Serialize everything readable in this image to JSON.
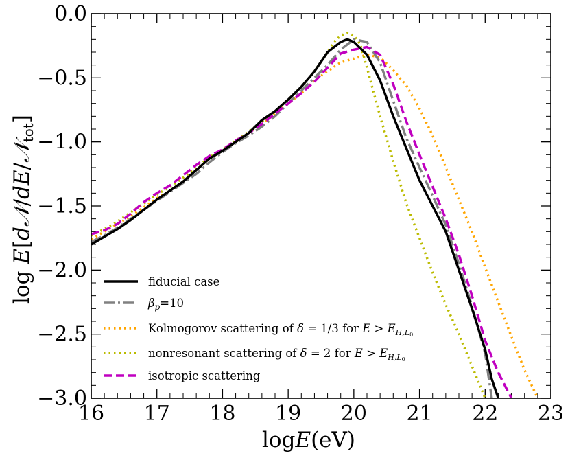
{
  "chart_data": {
    "type": "line",
    "title": "",
    "xlabel": "logE(eV)",
    "ylabel": "log E[dN/dE/N_tot]",
    "xlim": [
      16,
      23
    ],
    "ylim": [
      -3.0,
      0.0
    ],
    "xticks": [
      16,
      17,
      18,
      19,
      20,
      21,
      22,
      23
    ],
    "xtick_labels": [
      "16",
      "17",
      "18",
      "19",
      "20",
      "21",
      "22",
      "23"
    ],
    "yticks": [
      0.0,
      -0.5,
      -1.0,
      -1.5,
      -2.0,
      -2.5,
      -3.0
    ],
    "ytick_labels": [
      "0.0",
      "−0.5",
      "−1.0",
      "−1.5",
      "−2.0",
      "−2.5",
      "−3.0"
    ],
    "grid": false,
    "legend_position": "lower-left",
    "series": [
      {
        "name": "fiducial case",
        "color": "#000000",
        "style": "solid",
        "x": [
          16.0,
          16.2,
          16.4,
          16.6,
          16.8,
          17.0,
          17.2,
          17.4,
          17.6,
          17.8,
          18.0,
          18.2,
          18.4,
          18.6,
          18.8,
          19.0,
          19.2,
          19.4,
          19.6,
          19.8,
          19.9,
          20.0,
          20.2,
          20.4,
          20.6,
          20.8,
          21.0,
          21.2,
          21.4,
          21.6,
          21.8,
          22.0,
          22.1,
          22.2
        ],
        "y": [
          -1.8,
          -1.74,
          -1.68,
          -1.61,
          -1.53,
          -1.45,
          -1.38,
          -1.31,
          -1.22,
          -1.13,
          -1.07,
          -1.0,
          -0.93,
          -0.83,
          -0.76,
          -0.67,
          -0.57,
          -0.45,
          -0.3,
          -0.22,
          -0.2,
          -0.22,
          -0.32,
          -0.52,
          -0.8,
          -1.05,
          -1.3,
          -1.5,
          -1.7,
          -2.0,
          -2.3,
          -2.62,
          -2.85,
          -3.0
        ]
      },
      {
        "name": "β_p=10",
        "color": "#808080",
        "style": "dashdot",
        "x": [
          16.0,
          16.2,
          16.4,
          16.6,
          16.8,
          17.0,
          17.2,
          17.4,
          17.6,
          17.8,
          18.0,
          18.2,
          18.4,
          18.6,
          18.8,
          19.0,
          19.2,
          19.4,
          19.6,
          19.8,
          20.0,
          20.2,
          20.4,
          20.6,
          20.8,
          21.0,
          21.2,
          21.4,
          21.6,
          21.8,
          22.0,
          22.1
        ],
        "y": [
          -1.78,
          -1.73,
          -1.67,
          -1.6,
          -1.53,
          -1.46,
          -1.39,
          -1.32,
          -1.25,
          -1.16,
          -1.08,
          -1.01,
          -0.95,
          -0.88,
          -0.8,
          -0.7,
          -0.6,
          -0.5,
          -0.4,
          -0.28,
          -0.2,
          -0.22,
          -0.38,
          -0.68,
          -0.97,
          -1.2,
          -1.42,
          -1.65,
          -1.95,
          -2.28,
          -2.65,
          -3.0
        ]
      },
      {
        "name": "Kolmogorov scattering of δ = 1/3 for E > E_{H,L0}",
        "color": "#ffa500",
        "style": "dotted",
        "x": [
          16.0,
          16.2,
          16.4,
          16.6,
          16.8,
          17.0,
          17.2,
          17.4,
          17.6,
          17.8,
          18.0,
          18.2,
          18.4,
          18.6,
          18.8,
          19.0,
          19.2,
          19.4,
          19.6,
          19.8,
          20.0,
          20.2,
          20.4,
          20.6,
          20.8,
          21.0,
          21.2,
          21.4,
          21.6,
          21.8,
          22.0,
          22.2,
          22.4,
          22.6,
          22.8
        ],
        "y": [
          -1.76,
          -1.7,
          -1.64,
          -1.58,
          -1.51,
          -1.44,
          -1.38,
          -1.31,
          -1.22,
          -1.13,
          -1.07,
          -1.0,
          -0.93,
          -0.86,
          -0.78,
          -0.7,
          -0.62,
          -0.52,
          -0.45,
          -0.38,
          -0.35,
          -0.32,
          -0.34,
          -0.44,
          -0.56,
          -0.74,
          -0.95,
          -1.2,
          -1.45,
          -1.7,
          -1.98,
          -2.25,
          -2.52,
          -2.78,
          -3.0
        ]
      },
      {
        "name": "nonresonant scattering of δ = 2 for E > E_{H,L0}",
        "color": "#bbbb00",
        "style": "dotted",
        "x": [
          16.0,
          16.2,
          16.4,
          16.6,
          16.8,
          17.0,
          17.2,
          17.4,
          17.6,
          17.8,
          18.0,
          18.2,
          18.4,
          18.6,
          18.8,
          19.0,
          19.2,
          19.4,
          19.6,
          19.7,
          19.8,
          19.9,
          20.0,
          20.1,
          20.2,
          20.4,
          20.6,
          20.8,
          21.0,
          21.2,
          21.4,
          21.6,
          21.8,
          22.0
        ],
        "y": [
          -1.73,
          -1.68,
          -1.62,
          -1.55,
          -1.48,
          -1.41,
          -1.35,
          -1.28,
          -1.2,
          -1.12,
          -1.06,
          -0.99,
          -0.92,
          -0.84,
          -0.76,
          -0.67,
          -0.57,
          -0.45,
          -0.3,
          -0.22,
          -0.17,
          -0.15,
          -0.17,
          -0.24,
          -0.42,
          -0.8,
          -1.15,
          -1.48,
          -1.75,
          -2.02,
          -2.27,
          -2.5,
          -2.75,
          -3.0
        ]
      },
      {
        "name": "isotropic scattering",
        "color": "#c000c0",
        "style": "dashed",
        "x": [
          16.0,
          16.2,
          16.4,
          16.6,
          16.8,
          17.0,
          17.2,
          17.4,
          17.6,
          17.8,
          18.0,
          18.2,
          18.4,
          18.6,
          18.8,
          19.0,
          19.2,
          19.4,
          19.6,
          19.8,
          20.0,
          20.2,
          20.4,
          20.6,
          20.8,
          21.0,
          21.2,
          21.4,
          21.6,
          21.8,
          22.0,
          22.2,
          22.4
        ],
        "y": [
          -1.72,
          -1.69,
          -1.64,
          -1.56,
          -1.47,
          -1.4,
          -1.34,
          -1.26,
          -1.18,
          -1.11,
          -1.06,
          -0.99,
          -0.93,
          -0.86,
          -0.78,
          -0.7,
          -0.62,
          -0.53,
          -0.42,
          -0.31,
          -0.28,
          -0.26,
          -0.32,
          -0.55,
          -0.84,
          -1.1,
          -1.35,
          -1.6,
          -1.88,
          -2.2,
          -2.55,
          -2.8,
          -3.0
        ]
      }
    ]
  }
}
